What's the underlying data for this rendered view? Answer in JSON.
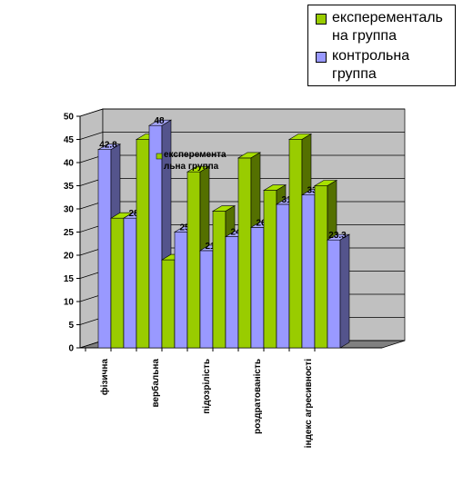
{
  "chart_data": {
    "type": "bar3d",
    "categories": [
      "фізична",
      null,
      "вербальна",
      null,
      "підозрілість",
      null,
      "роздратованість",
      null,
      "індекс агресивності",
      null
    ],
    "series": [
      {
        "name": "експеременталь на группа",
        "color": "#99cc00",
        "values": [
          null,
          28,
          45,
          19,
          38,
          29.5,
          41,
          34,
          45,
          35
        ]
      },
      {
        "name": "контрольна группа",
        "color": "#9999ff",
        "values": [
          42.8,
          28,
          48,
          25,
          21,
          24,
          26,
          31,
          33,
          23.3
        ]
      }
    ],
    "annotation": "експеремента льна группа",
    "ylim": [
      0,
      50
    ],
    "yticks": [
      0,
      5,
      10,
      15,
      20,
      25,
      30,
      35,
      40,
      45,
      50
    ],
    "grid": true,
    "legend": "top-right"
  }
}
